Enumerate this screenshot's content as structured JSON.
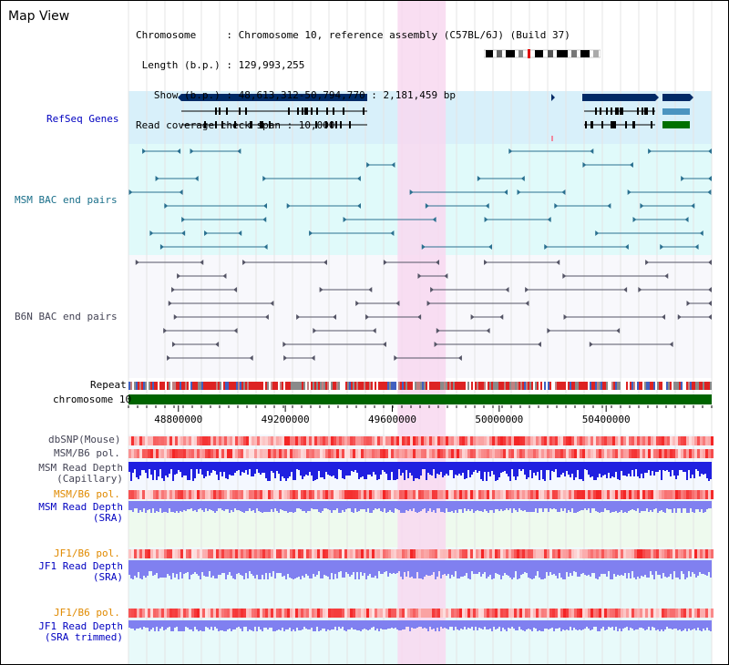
{
  "page": {
    "title": "Map View"
  },
  "info": {
    "chromosome_line": "Chromosome     : Chromosome 10, reference assembly (C57BL/6J) (Build 37)",
    "length_line": " Length (b.p.) : 129,993,255",
    "show_line": "   Show (b.p.) : 48,613,312-50,794,770 : 2,181,459 bp",
    "coverage_line": "Read coverage check span : 10,000"
  },
  "tracks": {
    "refseq": "RefSeq Genes",
    "msm_bac": "MSM BAC end pairs",
    "b6n_bac": "B6N BAC end pairs",
    "repeat": "Repeat",
    "chromosome": "chromosome 10",
    "dbsnp": "dbSNP(Mouse)",
    "msm_pol_1": "MSM/B6 pol.",
    "msm_depth_cap_1": "MSM Read Depth",
    "msm_depth_cap_2": "(Capillary)",
    "msm_pol_2": "MSM/B6 pol.",
    "msm_depth_sra_1": "MSM Read Depth",
    "msm_depth_sra_2": "(SRA)",
    "jf1_pol_1": "JF1/B6 pol.",
    "jf1_depth_sra_1": "JF1 Read Depth",
    "jf1_depth_sra_2": "(SRA)",
    "jf1_pol_2": "JF1/B6 pol.",
    "jf1_depth_trim_1": "JF1 Read Depth",
    "jf1_depth_trim_2": "(SRA trimmed)"
  },
  "axis": {
    "ticks": [
      "48800000",
      "49200000",
      "49600000",
      "50000000",
      "50400000"
    ],
    "tick_values": [
      48800000,
      49200000,
      49600000,
      50000000,
      50400000
    ],
    "range": [
      48613312,
      50794770
    ]
  },
  "highlight": {
    "start": 49620000,
    "end": 49800000
  },
  "colors": {
    "highlight": "#f8d8f0",
    "refseq_bg": "#d8f0fa",
    "bac_bg": "#e0fafa",
    "navy": "#002a66",
    "teal": "#2a7090",
    "gene_blue": "#4a94c0",
    "gene_green": "#007000",
    "chromosome": "#006400",
    "depth_blue": "#2020e0",
    "depth_light": "#8080f0",
    "pol_red": "#f02020"
  }
}
